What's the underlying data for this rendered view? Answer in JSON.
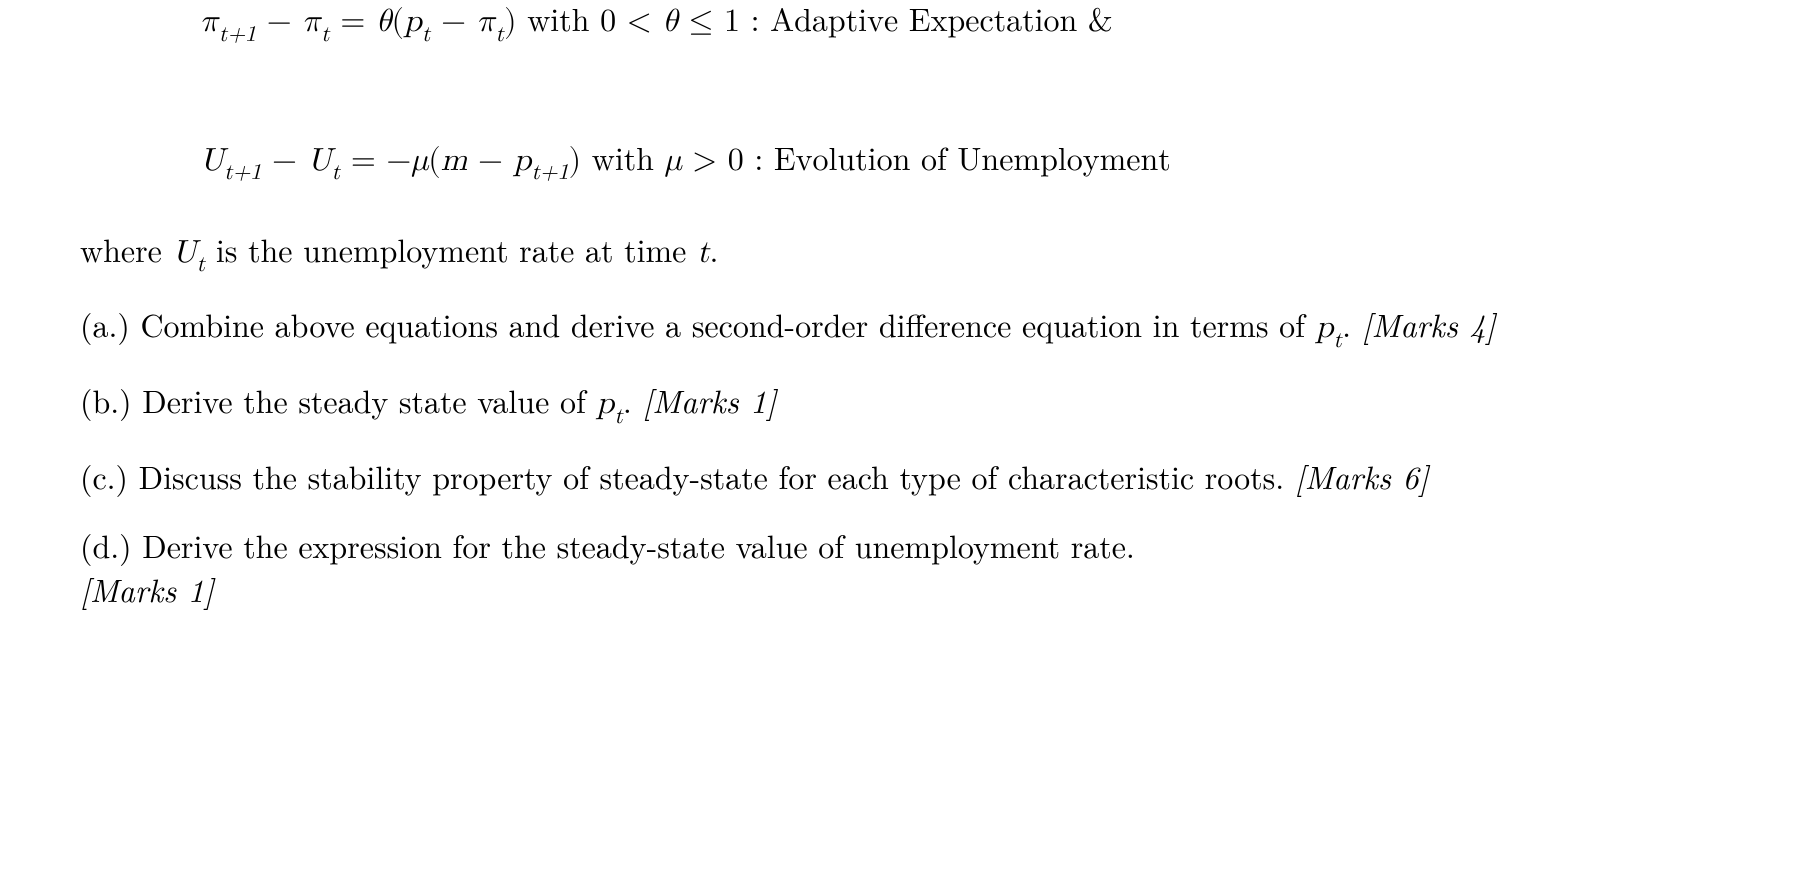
{
  "colors": {
    "text": "#000000",
    "background": "#ffffff"
  },
  "typography": {
    "body_fontsize_pt": 24,
    "font_family": "Latin Modern Roman, Computer Modern, serif",
    "line_height": 1.4
  },
  "equations": {
    "adaptive": {
      "lhs_pi": "π",
      "sub_tplus1": "t+1",
      "minus": " − ",
      "sub_t": "t",
      "equals": " = ",
      "theta": "θ",
      "open": "(",
      "p": "p",
      "close": ")",
      "cond_text": " with 0 < ",
      "cond_text2": " ≤ 1  :  ",
      "label": "Adaptive Expectation &"
    },
    "unemployment": {
      "U": "U",
      "sub_tplus1": "t+1",
      "minus": " − ",
      "sub_t": "t",
      "equals": " = −",
      "mu": "μ",
      "open": "(",
      "m": "m",
      "p": "p",
      "close": ")",
      "cond_text": " with ",
      "cond_gt": " > 0  :  ",
      "label": "Evolution of Unemployment"
    }
  },
  "where_text": {
    "pre": "where ",
    "U": "U",
    "sub_t": "t",
    "post": " is the unemployment rate at time ",
    "t": "t",
    "period": "."
  },
  "questions": {
    "a": {
      "label": "(a.) ",
      "text1": "Combine above equations and derive a second-order difference equation in terms of ",
      "p": "p",
      "sub_t": "t",
      "period": ". ",
      "marks": "[Marks 4]"
    },
    "b": {
      "label": "(b.) ",
      "text1": "Derive the steady state value of ",
      "p": "p",
      "sub_t": "t",
      "period": ". ",
      "marks": "[Marks 1]"
    },
    "c": {
      "label": "(c.) ",
      "text": "Discuss the stability property of steady-state for each type of characteristic roots. ",
      "marks": "[Marks 6]"
    },
    "d": {
      "label": "(d.) ",
      "text": "Derive the expression for the steady-state value of unemployment rate. ",
      "marks": "[Marks 1]"
    }
  }
}
